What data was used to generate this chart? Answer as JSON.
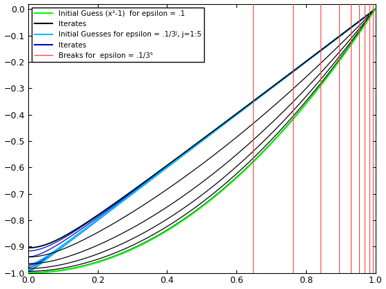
{
  "xlim": [
    0,
    1
  ],
  "ylim": [
    -1,
    0.02
  ],
  "epsilon_0": 0.1,
  "n_j": 5,
  "fig_width": 5.6,
  "fig_height": 4.2,
  "dpi": 100,
  "green_color": "#00FF00",
  "black_color": "#000000",
  "cyan_color": "#00BFFF",
  "blue_color": "#0000CC",
  "red_color": "#FF4444",
  "bg_color": "#FFFFFF",
  "breaks_red": [
    0.648,
    0.762,
    0.842,
    0.895,
    0.93,
    0.953,
    0.97,
    0.983,
    0.993
  ],
  "legend_labels": [
    "Initial Guess (x²-1)  for epsilon = .1",
    "Iterates",
    "Initial Guesses for epsilon = .1/3ʲ, j=1:5",
    "Iterates",
    "Breaks for  epsilon = .1/3⁵"
  ]
}
